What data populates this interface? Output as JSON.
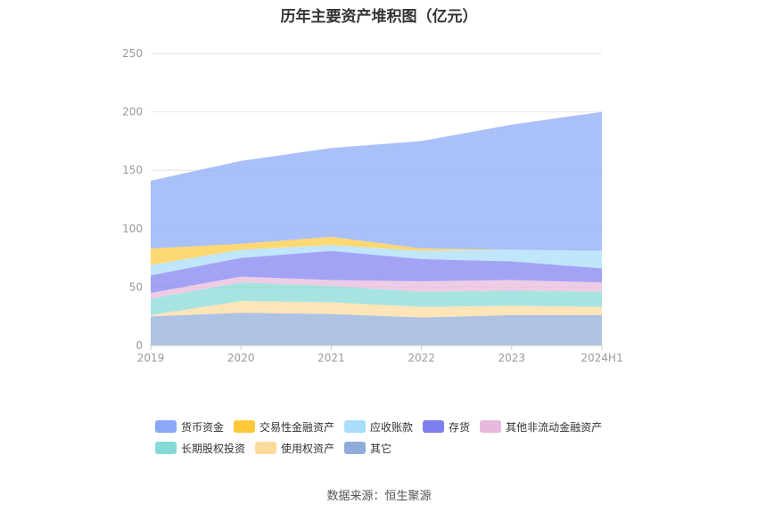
{
  "chart_data": {
    "type": "area",
    "stacked": true,
    "title": "历年主要资产堆积图（亿元）",
    "categories": [
      "2019",
      "2020",
      "2021",
      "2022",
      "2023",
      "2024H1"
    ],
    "ylim": [
      0,
      250
    ],
    "yticks": [
      0,
      50,
      100,
      150,
      200,
      250
    ],
    "grid": true,
    "legend_position": "bottom",
    "series": [
      {
        "name": "其它",
        "color": "#8fabd9",
        "values": [
          25,
          28,
          27,
          24,
          26,
          26
        ]
      },
      {
        "name": "使用权资产",
        "color": "#fddb9c",
        "values": [
          1,
          10,
          10,
          9,
          8,
          7
        ]
      },
      {
        "name": "长期股权投资",
        "color": "#85d9d6",
        "values": [
          14,
          16,
          14,
          13,
          13,
          13
        ]
      },
      {
        "name": "其他非流动金融资产",
        "color": "#e8b9dc",
        "values": [
          5,
          5,
          5,
          9,
          9,
          8
        ]
      },
      {
        "name": "存货",
        "color": "#7f7ff2",
        "values": [
          15,
          16,
          25,
          19,
          16,
          12
        ]
      },
      {
        "name": "应收账款",
        "color": "#a8ddfb",
        "values": [
          9,
          7,
          5,
          7,
          10,
          15
        ]
      },
      {
        "name": "交易性金融资产",
        "color": "#fdc93b",
        "values": [
          14,
          5,
          7,
          2,
          0,
          0
        ]
      },
      {
        "name": "货币资金",
        "color": "#89a8f6",
        "values": [
          58,
          71,
          76,
          92,
          107,
          119
        ]
      }
    ],
    "legend_order": [
      "货币资金",
      "交易性金融资产",
      "应收账款",
      "存货",
      "其他非流动金融资产",
      "长期股权投资",
      "使用权资产",
      "其它"
    ]
  },
  "source_text": "数据来源：恒生聚源"
}
